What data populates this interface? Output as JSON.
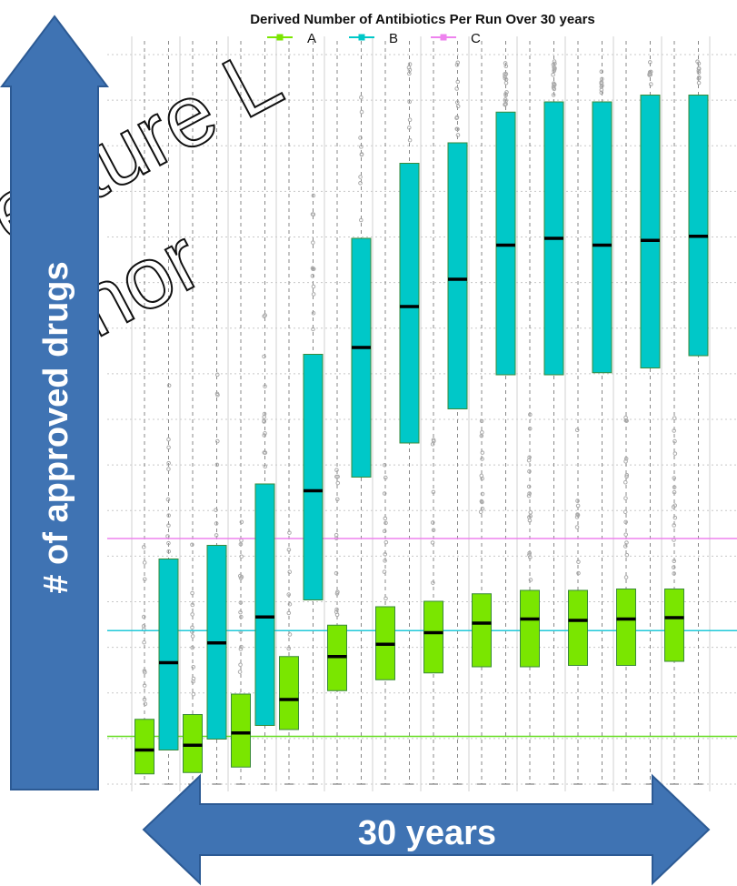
{
  "chart_data": {
    "type": "box",
    "title": "Derived Number of Antibiotics Per Run Over 30 years",
    "legend": {
      "placement": "top-center",
      "entries": [
        {
          "name": "A",
          "color": "#7ae600"
        },
        {
          "name": "B",
          "color": "#00c8c8"
        },
        {
          "name": "C",
          "color": "#ee82ee"
        }
      ]
    },
    "y_axis_arrow_label": "# of approved drugs",
    "x_axis_arrow_label": "30 years",
    "reference_lines": [
      {
        "series": "C",
        "value": 0.36,
        "color": "#ee82ee"
      },
      {
        "series": "B",
        "value": 0.225,
        "color": "#20c8d8"
      },
      {
        "series": "A",
        "value": 0.07,
        "color": "#66dd22"
      }
    ],
    "ylim": [
      0,
      1
    ],
    "grid": true,
    "series": [
      {
        "name": "A",
        "color": "#7ae600",
        "boxes": [
          {
            "slot": 1,
            "q1": 0.015,
            "median": 0.05,
            "q3": 0.095
          },
          {
            "slot": 3,
            "q1": 0.017,
            "median": 0.057,
            "q3": 0.102
          },
          {
            "slot": 5,
            "q1": 0.025,
            "median": 0.075,
            "q3": 0.132
          },
          {
            "slot": 7,
            "q1": 0.08,
            "median": 0.124,
            "q3": 0.187
          },
          {
            "slot": 9,
            "q1": 0.137,
            "median": 0.187,
            "q3": 0.233
          },
          {
            "slot": 11,
            "q1": 0.153,
            "median": 0.205,
            "q3": 0.26
          },
          {
            "slot": 13,
            "q1": 0.163,
            "median": 0.222,
            "q3": 0.268
          },
          {
            "slot": 15,
            "q1": 0.172,
            "median": 0.236,
            "q3": 0.279
          },
          {
            "slot": 17,
            "q1": 0.172,
            "median": 0.242,
            "q3": 0.284
          },
          {
            "slot": 19,
            "q1": 0.174,
            "median": 0.24,
            "q3": 0.284
          },
          {
            "slot": 21,
            "q1": 0.174,
            "median": 0.242,
            "q3": 0.286
          },
          {
            "slot": 23,
            "q1": 0.18,
            "median": 0.244,
            "q3": 0.286
          }
        ]
      },
      {
        "series_name": "B",
        "name": "B",
        "color": "#00c8c8",
        "boxes": [
          {
            "slot": 2,
            "q1": 0.05,
            "median": 0.178,
            "q3": 0.33
          },
          {
            "slot": 4,
            "q1": 0.066,
            "median": 0.207,
            "q3": 0.35
          },
          {
            "slot": 6,
            "q1": 0.086,
            "median": 0.245,
            "q3": 0.44
          },
          {
            "slot": 8,
            "q1": 0.27,
            "median": 0.43,
            "q3": 0.63
          },
          {
            "slot": 10,
            "q1": 0.45,
            "median": 0.64,
            "q3": 0.8
          },
          {
            "slot": 12,
            "q1": 0.5,
            "median": 0.7,
            "q3": 0.91
          },
          {
            "slot": 14,
            "q1": 0.55,
            "median": 0.74,
            "q3": 0.94
          },
          {
            "slot": 16,
            "q1": 0.6,
            "median": 0.79,
            "q3": 0.985
          },
          {
            "slot": 18,
            "q1": 0.6,
            "median": 0.8,
            "q3": 1.0
          },
          {
            "slot": 20,
            "q1": 0.603,
            "median": 0.79,
            "q3": 1.0
          },
          {
            "slot": 22,
            "q1": 0.61,
            "median": 0.797,
            "q3": 1.01
          },
          {
            "slot": 24,
            "q1": 0.628,
            "median": 0.803,
            "q3": 1.01
          }
        ]
      }
    ]
  },
  "watermark": {
    "line1": "ecture L",
    "line2": "uthor"
  },
  "colors": {
    "arrow_fill": "#3f73b3",
    "arrow_stroke": "#2c5a94",
    "arrow_text": "#ffffff"
  }
}
